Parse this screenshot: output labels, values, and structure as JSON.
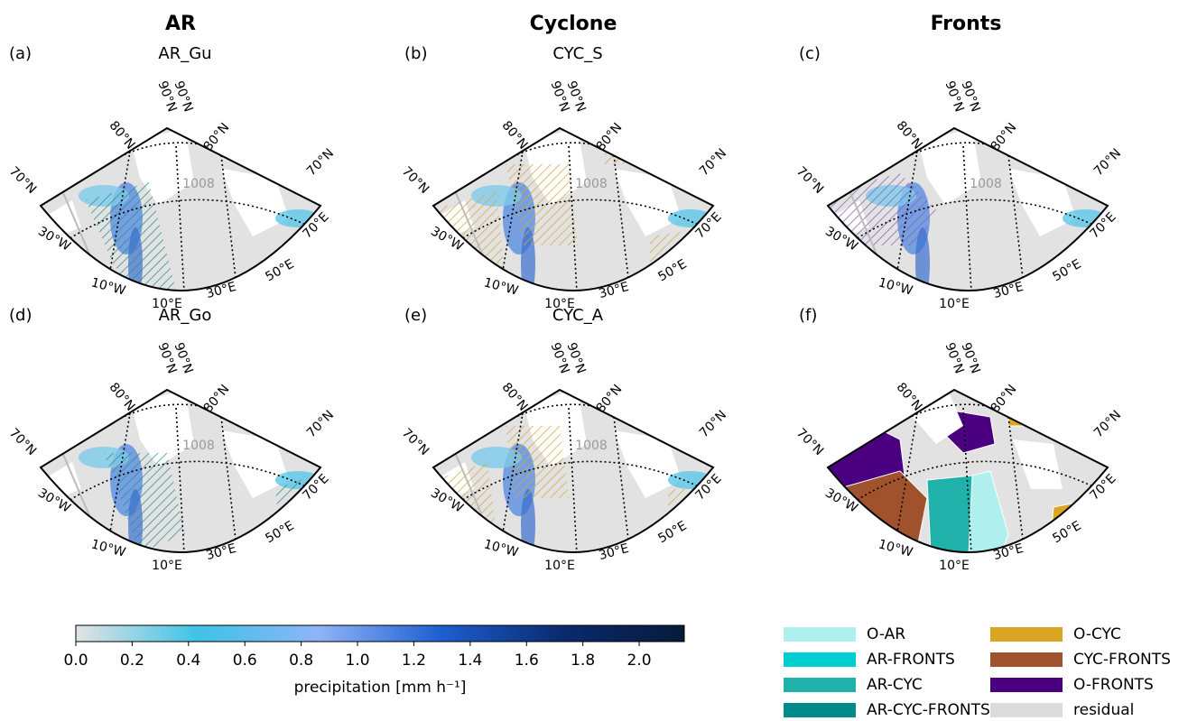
{
  "column_titles": [
    "AR",
    "Cyclone",
    "Fronts"
  ],
  "panels": [
    {
      "label": "(a)",
      "title": "AR_Gu"
    },
    {
      "label": "(b)",
      "title": "CYC_S"
    },
    {
      "label": "(c)"
    },
    {
      "label": "(d)",
      "title": "AR_Go"
    },
    {
      "label": "(e)",
      "title": "CYC_A"
    },
    {
      "label": "(f)"
    }
  ],
  "map_labels": {
    "lat": [
      "70°N",
      "80°N",
      "90°N"
    ],
    "lon": [
      "30°W",
      "10°W",
      "10°E",
      "30°E",
      "50°E",
      "70°E"
    ]
  },
  "contour_label": "1008",
  "chart_data": {
    "type": "colorbar",
    "label": "precipitation [mm h⁻¹]",
    "xlim": [
      0,
      2.16
    ],
    "xticks": [
      {
        "value": 0,
        "label": "0.0"
      },
      {
        "value": 0.2,
        "label": "0.2"
      },
      {
        "value": 0.4,
        "label": "0.4"
      },
      {
        "value": 0.6,
        "label": "0.6"
      },
      {
        "value": 0.8,
        "label": "0.8"
      },
      {
        "value": 1,
        "label": "1.0"
      },
      {
        "value": 1.2,
        "label": "1.2"
      },
      {
        "value": 1.4,
        "label": "1.4"
      },
      {
        "value": 1.6,
        "label": "1.6"
      },
      {
        "value": 1.8,
        "label": "1.8"
      },
      {
        "value": 2,
        "label": "2.0"
      }
    ],
    "colormap": [
      "#e3e3e3",
      "#3ec3e6",
      "#8fb4f7",
      "#1d5fd0",
      "#0a2a6e",
      "#061a3a"
    ]
  },
  "legend": {
    "entries": [
      {
        "name": "O-AR",
        "color": "#aff0ee"
      },
      {
        "name": "AR-FRONTS",
        "color": "#00ced1"
      },
      {
        "name": "AR-CYC",
        "color": "#20b2aa"
      },
      {
        "name": "AR-CYC-FRONTS",
        "color": "#008b8b"
      },
      {
        "name": "O-CYC",
        "color": "#daa520"
      },
      {
        "name": "CYC-FRONTS",
        "color": "#a0522d"
      },
      {
        "name": "O-FRONTS",
        "color": "#4b0082"
      },
      {
        "name": "residual",
        "color": "#dcdcdc"
      }
    ]
  }
}
